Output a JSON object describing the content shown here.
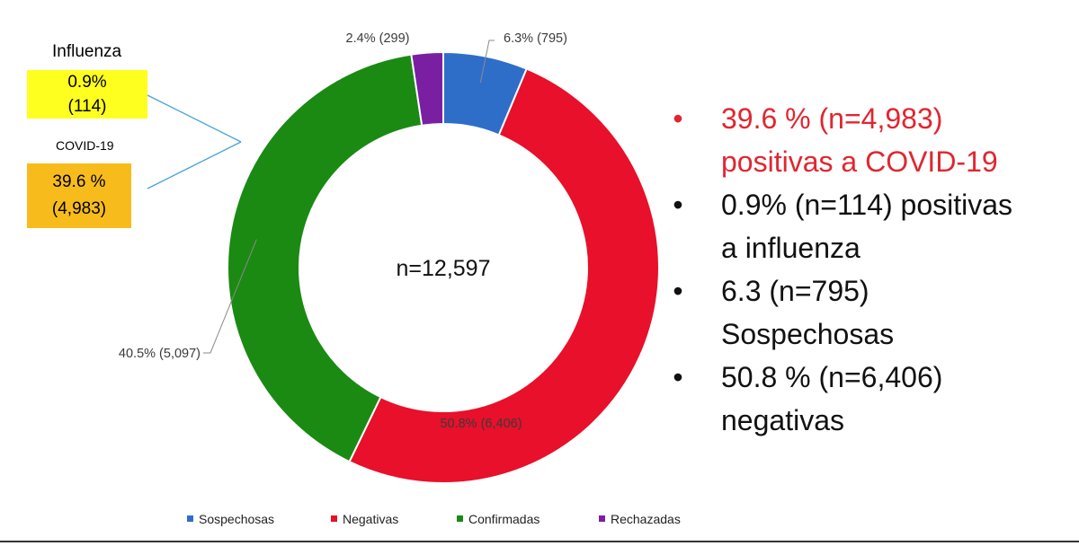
{
  "chart_data": {
    "type": "pie",
    "donut": true,
    "center_label": "n=12,597",
    "series": [
      {
        "name": "Sospechosas",
        "value": 795,
        "percent": 6.3,
        "label": "6.3% (795)",
        "color": "#2e6ec9"
      },
      {
        "name": "Negativas",
        "value": 6406,
        "percent": 50.8,
        "label": "50.8% (6,406)",
        "color": "#e8102a"
      },
      {
        "name": "Confirmadas",
        "value": 5097,
        "percent": 40.5,
        "label": "40.5% (5,097)",
        "color": "#1a8a13"
      },
      {
        "name": "Rechazadas",
        "value": 299,
        "percent": 2.4,
        "label": "2.4% (299)",
        "color": "#7a1fa2"
      }
    ],
    "legend_position": "bottom"
  },
  "callouts": {
    "influenza": {
      "title": "Influenza",
      "line1": "0.9%",
      "line2": "(114)"
    },
    "covid": {
      "title": "COVID-19",
      "line1": "39.6 %",
      "line2": "(4,983)"
    }
  },
  "bullets": [
    {
      "line1": "39.6 % (n=4,983)",
      "line2": "positivas a COVID-19",
      "color": "#e1262f"
    },
    {
      "line1": "0.9% (n=114) positivas",
      "line2": "a influenza"
    },
    {
      "line1": "6.3  (n=795)",
      "line2": "Sospechosas"
    },
    {
      "line1": "50.8 % (n=6,406)",
      "line2": "negativas"
    }
  ],
  "legend": [
    {
      "label": "Sospechosas",
      "color": "#2e6ec9"
    },
    {
      "label": "Negativas",
      "color": "#e8102a"
    },
    {
      "label": "Confirmadas",
      "color": "#1a8a13"
    },
    {
      "label": "Rechazadas",
      "color": "#7a1fa2"
    }
  ]
}
